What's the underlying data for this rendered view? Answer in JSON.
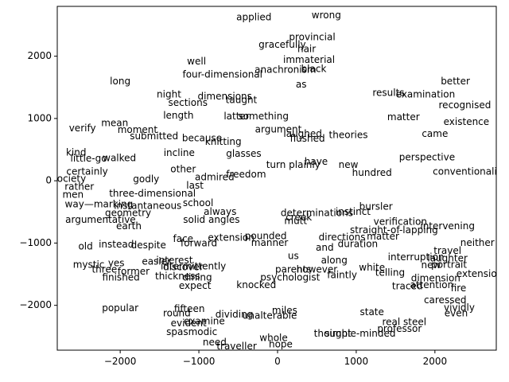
{
  "chart_data": {
    "type": "scatter",
    "title": "",
    "xlabel": "",
    "ylabel": "",
    "xlim": [
      -2800,
      2780
    ],
    "ylim": [
      -2720,
      2800
    ],
    "xticks": [
      -2000,
      -1000,
      0,
      1000,
      2000
    ],
    "yticks": [
      -2000,
      -1000,
      0,
      1000,
      2000
    ],
    "grid": false,
    "series": [
      {
        "marker": "text",
        "points": [
          {
            "x": 620,
            "y": 2650,
            "label": "wrong"
          },
          {
            "x": -300,
            "y": 2620,
            "label": "applied"
          },
          {
            "x": 440,
            "y": 2300,
            "label": "provincial"
          },
          {
            "x": 370,
            "y": 2110,
            "label": "hair"
          },
          {
            "x": 60,
            "y": 2180,
            "label": "gracefully"
          },
          {
            "x": 400,
            "y": 1940,
            "label": "immaterial"
          },
          {
            "x": 460,
            "y": 1790,
            "label": "black"
          },
          {
            "x": -1030,
            "y": 1910,
            "label": "well"
          },
          {
            "x": -2000,
            "y": 1590,
            "label": "long"
          },
          {
            "x": -700,
            "y": 1700,
            "label": "four-dimensional"
          },
          {
            "x": 100,
            "y": 1780,
            "label": "anachronism"
          },
          {
            "x": 300,
            "y": 1540,
            "label": "as"
          },
          {
            "x": -1380,
            "y": 1380,
            "label": "night"
          },
          {
            "x": -670,
            "y": 1350,
            "label": "dimensions"
          },
          {
            "x": -1140,
            "y": 1250,
            "label": "sections"
          },
          {
            "x": -460,
            "y": 1290,
            "label": "taught"
          },
          {
            "x": -1260,
            "y": 1040,
            "label": "length"
          },
          {
            "x": -520,
            "y": 1030,
            "label": "latter"
          },
          {
            "x": -180,
            "y": 1030,
            "label": "something"
          },
          {
            "x": -2480,
            "y": 840,
            "label": "verify"
          },
          {
            "x": -2070,
            "y": 920,
            "label": "mean"
          },
          {
            "x": -1780,
            "y": 810,
            "label": "moment"
          },
          {
            "x": -1570,
            "y": 710,
            "label": "submitted"
          },
          {
            "x": -960,
            "y": 680,
            "label": "because"
          },
          {
            "x": -690,
            "y": 620,
            "label": "knitting"
          },
          {
            "x": -1250,
            "y": 440,
            "label": "incline"
          },
          {
            "x": -430,
            "y": 430,
            "label": "glasses"
          },
          {
            "x": 10,
            "y": 820,
            "label": "argument"
          },
          {
            "x": 320,
            "y": 750,
            "label": "laughed"
          },
          {
            "x": 380,
            "y": 670,
            "label": "flushed"
          },
          {
            "x": 900,
            "y": 730,
            "label": "theories"
          },
          {
            "x": 1600,
            "y": 1020,
            "label": "matter"
          },
          {
            "x": 1410,
            "y": 1410,
            "label": "results"
          },
          {
            "x": 1880,
            "y": 1380,
            "label": "examination"
          },
          {
            "x": 2260,
            "y": 1590,
            "label": "better"
          },
          {
            "x": 2380,
            "y": 1210,
            "label": "recognised"
          },
          {
            "x": 2400,
            "y": 940,
            "label": "existence"
          },
          {
            "x": 2000,
            "y": 750,
            "label": "came"
          },
          {
            "x": -2560,
            "y": 450,
            "label": "kind"
          },
          {
            "x": -2400,
            "y": 350,
            "label": "little-go"
          },
          {
            "x": -2010,
            "y": 360,
            "label": "walked"
          },
          {
            "x": -2420,
            "y": 140,
            "label": "certainly"
          },
          {
            "x": -2650,
            "y": 30,
            "label": "society"
          },
          {
            "x": -2520,
            "y": -100,
            "label": "rather"
          },
          {
            "x": -2600,
            "y": -230,
            "label": "men"
          },
          {
            "x": -2270,
            "y": -380,
            "label": "way—marking"
          },
          {
            "x": -1650,
            "y": -410,
            "label": "instantaneous"
          },
          {
            "x": -1670,
            "y": 20,
            "label": "godly"
          },
          {
            "x": -1590,
            "y": -210,
            "label": "three-dimensional"
          },
          {
            "x": -1200,
            "y": 180,
            "label": "other"
          },
          {
            "x": -1050,
            "y": -80,
            "label": "last"
          },
          {
            "x": -800,
            "y": 50,
            "label": "admired"
          },
          {
            "x": -400,
            "y": 100,
            "label": "freedom"
          },
          {
            "x": 200,
            "y": 250,
            "label": "turn plainly"
          },
          {
            "x": 490,
            "y": 300,
            "label": "have"
          },
          {
            "x": 900,
            "y": 250,
            "label": "new"
          },
          {
            "x": 1200,
            "y": 120,
            "label": "hundred"
          },
          {
            "x": 1900,
            "y": 370,
            "label": "perspective"
          },
          {
            "x": 2490,
            "y": 140,
            "label": "conventionalities"
          },
          {
            "x": -1900,
            "y": -520,
            "label": "geometry"
          },
          {
            "x": -2250,
            "y": -630,
            "label": "argumentative"
          },
          {
            "x": -1890,
            "y": -730,
            "label": "earth"
          },
          {
            "x": -1010,
            "y": -360,
            "label": "school"
          },
          {
            "x": -840,
            "y": -630,
            "label": "solid angles"
          },
          {
            "x": -730,
            "y": -500,
            "label": "always"
          },
          {
            "x": -1200,
            "y": -940,
            "label": "face"
          },
          {
            "x": -1000,
            "y": -1010,
            "label": "forward"
          },
          {
            "x": -590,
            "y": -920,
            "label": "extension"
          },
          {
            "x": -150,
            "y": -890,
            "label": "pounded"
          },
          {
            "x": -100,
            "y": -1000,
            "label": "manner"
          },
          {
            "x": -2440,
            "y": -1060,
            "label": "old"
          },
          {
            "x": -2050,
            "y": -1030,
            "label": "instead"
          },
          {
            "x": -1640,
            "y": -1040,
            "label": "despite"
          },
          {
            "x": 500,
            "y": -520,
            "label": "determinations"
          },
          {
            "x": 960,
            "y": -500,
            "label": "instinct"
          },
          {
            "x": 1250,
            "y": -420,
            "label": "bursler"
          },
          {
            "x": 1480,
            "y": -800,
            "label": "straight-of-lapping"
          },
          {
            "x": 1560,
            "y": -660,
            "label": "verification"
          },
          {
            "x": 1340,
            "y": -900,
            "label": "matter"
          },
          {
            "x": 2160,
            "y": -730,
            "label": "intervening"
          },
          {
            "x": 2540,
            "y": -1000,
            "label": "neither"
          },
          {
            "x": 820,
            "y": -910,
            "label": "directions"
          },
          {
            "x": 1020,
            "y": -1020,
            "label": "duration"
          },
          {
            "x": 600,
            "y": -1080,
            "label": "and"
          },
          {
            "x": 230,
            "y": -650,
            "label": "mutt"
          },
          {
            "x": 270,
            "y": -590,
            "label": "creek"
          },
          {
            "x": 2160,
            "y": -1130,
            "label": "travel"
          },
          {
            "x": 1760,
            "y": -1230,
            "label": "interruption"
          },
          {
            "x": 2160,
            "y": -1250,
            "label": "laughter"
          },
          {
            "x": 720,
            "y": -1280,
            "label": "along"
          },
          {
            "x": 200,
            "y": -1210,
            "label": "us"
          },
          {
            "x": -2400,
            "y": -1350,
            "label": "mystic"
          },
          {
            "x": -2050,
            "y": -1330,
            "label": "yes"
          },
          {
            "x": -1540,
            "y": -1300,
            "label": "easier"
          },
          {
            "x": -1310,
            "y": -1280,
            "label": "interest"
          },
          {
            "x": -1070,
            "y": -1380,
            "label": "intermittently"
          },
          {
            "x": -1200,
            "y": -1390,
            "label": "discover"
          },
          {
            "x": -2200,
            "y": -1430,
            "label": "three"
          },
          {
            "x": -1830,
            "y": -1460,
            "label": "former"
          },
          {
            "x": -1990,
            "y": -1560,
            "label": "finished"
          },
          {
            "x": -1270,
            "y": -1540,
            "label": "thickness"
          },
          {
            "x": -1020,
            "y": -1560,
            "label": "dining"
          },
          {
            "x": -1050,
            "y": -1690,
            "label": "expect"
          },
          {
            "x": 200,
            "y": -1430,
            "label": "parents"
          },
          {
            "x": 500,
            "y": -1430,
            "label": "however"
          },
          {
            "x": 1200,
            "y": -1400,
            "label": "white"
          },
          {
            "x": 1430,
            "y": -1480,
            "label": "telling"
          },
          {
            "x": 1950,
            "y": -1360,
            "label": "new"
          },
          {
            "x": 2180,
            "y": -1350,
            "label": "portrait"
          },
          {
            "x": 2600,
            "y": -1500,
            "label": "extensions"
          },
          {
            "x": 820,
            "y": -1520,
            "label": "faintly"
          },
          {
            "x": 160,
            "y": -1560,
            "label": "psychologist"
          },
          {
            "x": -270,
            "y": -1680,
            "label": "knocked"
          },
          {
            "x": 2010,
            "y": -1570,
            "label": "dimension"
          },
          {
            "x": 1960,
            "y": -1680,
            "label": "attention"
          },
          {
            "x": 1650,
            "y": -1700,
            "label": "traced"
          },
          {
            "x": 2300,
            "y": -1730,
            "label": "fire"
          },
          {
            "x": 2130,
            "y": -1920,
            "label": "caressed"
          },
          {
            "x": 2310,
            "y": -2040,
            "label": "vividly"
          },
          {
            "x": 2270,
            "y": -2130,
            "label": "even"
          },
          {
            "x": -2000,
            "y": -2050,
            "label": "popular"
          },
          {
            "x": -1120,
            "y": -2060,
            "label": "fifteen"
          },
          {
            "x": 90,
            "y": -2090,
            "label": "miles"
          },
          {
            "x": 1200,
            "y": -2110,
            "label": "state"
          },
          {
            "x": -1280,
            "y": -2130,
            "label": "round"
          },
          {
            "x": -930,
            "y": -2260,
            "label": "examine"
          },
          {
            "x": -550,
            "y": -2150,
            "label": "dividing"
          },
          {
            "x": -100,
            "y": -2170,
            "label": "unalterable"
          },
          {
            "x": 1610,
            "y": -2270,
            "label": "real steel"
          },
          {
            "x": 1550,
            "y": -2380,
            "label": "professor"
          },
          {
            "x": -1130,
            "y": -2290,
            "label": "evident"
          },
          {
            "x": -1090,
            "y": -2430,
            "label": "spasmodic"
          },
          {
            "x": 700,
            "y": -2460,
            "label": "thought"
          },
          {
            "x": 1050,
            "y": -2460,
            "label": "simple-minded"
          },
          {
            "x": -50,
            "y": -2530,
            "label": "whole"
          },
          {
            "x": 40,
            "y": -2630,
            "label": "hope"
          },
          {
            "x": -800,
            "y": -2600,
            "label": "need"
          },
          {
            "x": -520,
            "y": -2660,
            "label": "traveller"
          }
        ]
      }
    ]
  }
}
